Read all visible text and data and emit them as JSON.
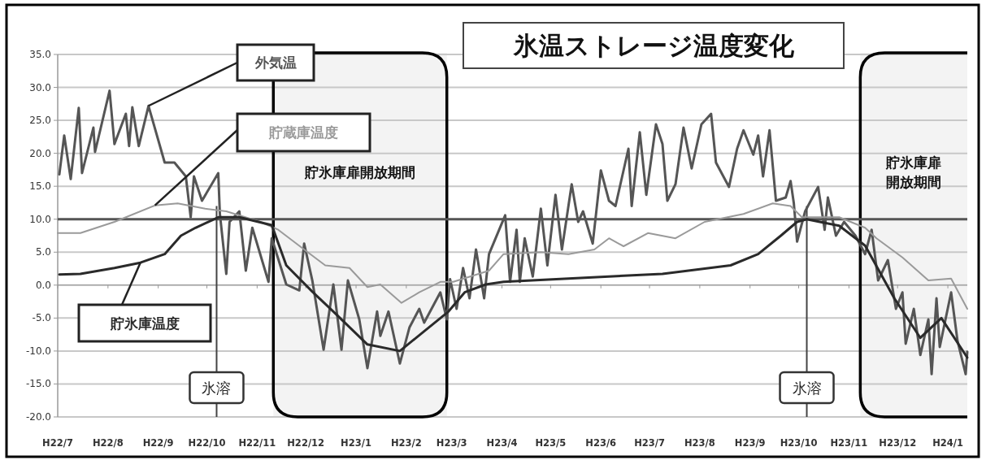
{
  "chart_data": {
    "type": "line",
    "title": "氷温ストレージ温度変化",
    "xlim": [
      "2010-07-01",
      "2012-01-13"
    ],
    "ylim": [
      -20,
      35
    ],
    "xticks": [
      {
        "value": "2010-07-01",
        "label": "H22/7"
      },
      {
        "value": "2010-08-01",
        "label": "H22/8"
      },
      {
        "value": "2010-09-01",
        "label": "H22/9"
      },
      {
        "value": "2010-10-01",
        "label": "H22/10"
      },
      {
        "value": "2010-11-01",
        "label": "H22/11"
      },
      {
        "value": "2010-12-01",
        "label": "H22/12"
      },
      {
        "value": "2011-01-01",
        "label": "H23/1"
      },
      {
        "value": "2011-02-01",
        "label": "H23/2"
      },
      {
        "value": "2011-03-01",
        "label": "H23/3"
      },
      {
        "value": "2011-04-01",
        "label": "H23/4"
      },
      {
        "value": "2011-05-01",
        "label": "H23/5"
      },
      {
        "value": "2011-06-01",
        "label": "H23/6"
      },
      {
        "value": "2011-07-01",
        "label": "H23/7"
      },
      {
        "value": "2011-08-01",
        "label": "H23/8"
      },
      {
        "value": "2011-09-01",
        "label": "H23/9"
      },
      {
        "value": "2011-10-01",
        "label": "H23/10"
      },
      {
        "value": "2011-11-01",
        "label": "H23/11"
      },
      {
        "value": "2011-12-01",
        "label": "H23/12"
      },
      {
        "value": "2012-01-01",
        "label": "H24/1"
      }
    ],
    "yticks": [
      {
        "value": -20,
        "label": "-20.0"
      },
      {
        "value": -15,
        "label": "-15.0"
      },
      {
        "value": -10,
        "label": "-10.0"
      },
      {
        "value": -5,
        "label": "-5.0"
      },
      {
        "value": 0,
        "label": "0.0"
      },
      {
        "value": 5,
        "label": "5.0"
      },
      {
        "value": 10,
        "label": "10.0"
      },
      {
        "value": 15,
        "label": "15.0"
      },
      {
        "value": 20,
        "label": "20.0"
      },
      {
        "value": 25,
        "label": "25.0"
      },
      {
        "value": 30,
        "label": "30.0"
      },
      {
        "value": 35,
        "label": "35.0"
      }
    ],
    "grid": "y",
    "legend": false,
    "marker": "none",
    "line_style": "solid",
    "series": [
      {
        "name": "外気温",
        "color": "#555555",
        "x": [
          "2010-07-02",
          "2010-07-05",
          "2010-07-09",
          "2010-07-14",
          "2010-07-16",
          "2010-07-23",
          "2010-07-24",
          "2010-08-02",
          "2010-08-05",
          "2010-08-12",
          "2010-08-14",
          "2010-08-16",
          "2010-08-20",
          "2010-08-26",
          "2010-09-05",
          "2010-09-11",
          "2010-09-18",
          "2010-09-21",
          "2010-09-23",
          "2010-09-28",
          "2010-10-08",
          "2010-10-09",
          "2010-10-13",
          "2010-10-15",
          "2010-10-21",
          "2010-10-25",
          "2010-10-29",
          "2010-11-08",
          "2010-11-10",
          "2010-11-19",
          "2010-11-27",
          "2010-11-30",
          "2010-12-05",
          "2010-12-12",
          "2010-12-18",
          "2010-12-23",
          "2010-12-27",
          "2011-01-03",
          "2011-01-08",
          "2011-01-14",
          "2011-01-16",
          "2011-01-21",
          "2011-01-28",
          "2011-02-03",
          "2011-02-09",
          "2011-02-12",
          "2011-02-22",
          "2011-02-26",
          "2011-02-28",
          "2011-03-04",
          "2011-03-08",
          "2011-03-12",
          "2011-03-16",
          "2011-03-21",
          "2011-03-24",
          "2011-04-03",
          "2011-04-06",
          "2011-04-10",
          "2011-04-12",
          "2011-04-15",
          "2011-04-20",
          "2011-04-25",
          "2011-04-29",
          "2011-05-04",
          "2011-05-08",
          "2011-05-14",
          "2011-05-18",
          "2011-05-21",
          "2011-05-27",
          "2011-06-01",
          "2011-06-06",
          "2011-06-10",
          "2011-06-18",
          "2011-06-20",
          "2011-06-25",
          "2011-06-29",
          "2011-07-05",
          "2011-07-09",
          "2011-07-12",
          "2011-07-17",
          "2011-07-22",
          "2011-07-27",
          "2011-08-02",
          "2011-08-08",
          "2011-08-11",
          "2011-08-19",
          "2011-08-24",
          "2011-08-28",
          "2011-09-03",
          "2011-09-06",
          "2011-09-09",
          "2011-09-13",
          "2011-09-17",
          "2011-09-23",
          "2011-09-26",
          "2011-09-28",
          "2011-09-30",
          "2011-10-05",
          "2011-10-13",
          "2011-10-17",
          "2011-10-19",
          "2011-10-24",
          "2011-10-29",
          "2011-11-05",
          "2011-11-11",
          "2011-11-15",
          "2011-11-19",
          "2011-11-25",
          "2011-11-30",
          "2011-12-04",
          "2011-12-06",
          "2011-12-11",
          "2011-12-15",
          "2011-12-20",
          "2011-12-22",
          "2011-12-25",
          "2011-12-27",
          "2012-01-03",
          "2012-01-07",
          "2012-01-12",
          "2012-01-13"
        ],
        "values": [
          16.8,
          22.7,
          16.1,
          26.9,
          17.0,
          23.9,
          20.2,
          29.5,
          21.4,
          26.0,
          21.1,
          27.0,
          21.1,
          27.2,
          18.6,
          18.6,
          16.5,
          10.3,
          16.5,
          12.8,
          17.0,
          10.8,
          1.7,
          9.6,
          11.2,
          2.2,
          8.7,
          0.5,
          7.1,
          0.1,
          -0.8,
          6.3,
          0.7,
          -9.8,
          0.1,
          -9.8,
          0.7,
          -5.2,
          -12.6,
          -4.0,
          -7.7,
          -4.0,
          -11.9,
          -6.4,
          -3.6,
          -5.7,
          -1.1,
          -5.2,
          0.9,
          -3.6,
          2.6,
          -2.0,
          5.4,
          -2.0,
          4.7,
          10.6,
          0.5,
          8.4,
          0.5,
          7.1,
          1.3,
          11.6,
          3.0,
          13.7,
          5.4,
          15.3,
          9.6,
          11.2,
          6.3,
          17.4,
          12.8,
          12.0,
          20.7,
          12.0,
          23.2,
          13.7,
          24.4,
          21.4,
          12.8,
          15.3,
          23.9,
          17.7,
          24.4,
          26.0,
          18.6,
          14.9,
          20.7,
          23.5,
          19.8,
          22.7,
          16.5,
          23.5,
          12.8,
          13.3,
          15.8,
          12.4,
          6.6,
          11.2,
          14.9,
          8.4,
          13.3,
          7.5,
          9.6,
          7.5,
          4.7,
          8.4,
          0.7,
          3.8,
          -3.6,
          -1.1,
          -8.9,
          -3.6,
          -10.6,
          -5.2,
          -13.5,
          -2.0,
          -9.4,
          -1.1,
          -8.5,
          -13.5,
          -10.1
        ]
      },
      {
        "name": "貯蔵庫温度",
        "color": "#9a9a9a",
        "x": [
          "2010-07-01",
          "2010-07-15",
          "2010-08-05",
          "2010-08-30",
          "2010-09-13",
          "2010-09-30",
          "2010-10-13",
          "2010-11-03",
          "2010-11-14",
          "2010-11-30",
          "2010-12-13",
          "2010-12-28",
          "2011-01-08",
          "2011-01-16",
          "2011-01-29",
          "2011-02-09",
          "2011-02-22",
          "2011-03-02",
          "2011-03-24",
          "2011-04-02",
          "2011-04-25",
          "2011-05-12",
          "2011-05-28",
          "2011-06-06",
          "2011-06-15",
          "2011-06-30",
          "2011-07-17",
          "2011-08-04",
          "2011-08-28",
          "2011-09-15",
          "2011-09-26",
          "2011-10-03",
          "2011-10-26",
          "2011-11-11",
          "2011-11-18",
          "2011-12-04",
          "2011-12-20",
          "2012-01-03",
          "2012-01-13"
        ],
        "values": [
          7.9,
          7.9,
          9.6,
          12.1,
          12.4,
          11.6,
          11.2,
          9.6,
          8.4,
          5.4,
          3.0,
          2.6,
          -0.3,
          0.1,
          -2.7,
          -1.1,
          0.5,
          0.5,
          2.2,
          4.7,
          5.0,
          4.7,
          5.4,
          7.1,
          5.9,
          7.9,
          7.1,
          9.6,
          10.8,
          12.4,
          12.0,
          10.3,
          10.3,
          8.7,
          7.1,
          4.2,
          0.7,
          1.0,
          -3.6
        ]
      },
      {
        "name": "貯氷庫温度",
        "color": "#2a2a2a",
        "x": [
          "2010-07-02",
          "2010-07-15",
          "2010-08-05",
          "2010-08-21",
          "2010-09-05",
          "2010-09-15",
          "2010-09-24",
          "2010-10-08",
          "2010-10-21",
          "2010-11-10",
          "2010-11-19",
          "2010-12-05",
          "2010-12-18",
          "2011-01-08",
          "2011-01-28",
          "2011-02-12",
          "2011-02-27",
          "2011-03-09",
          "2011-03-22",
          "2011-04-02",
          "2011-05-12",
          "2011-07-09",
          "2011-08-20",
          "2011-09-06",
          "2011-09-20",
          "2011-09-30",
          "2011-10-06",
          "2011-10-26",
          "2011-11-11",
          "2011-11-29",
          "2011-12-15",
          "2011-12-28",
          "2012-01-13"
        ],
        "values": [
          1.6,
          1.7,
          2.6,
          3.4,
          4.7,
          7.5,
          8.7,
          10.3,
          10.3,
          9.1,
          3.0,
          -1.0,
          -4.0,
          -9.0,
          -10.0,
          -7.0,
          -4.0,
          -1.1,
          0.1,
          0.5,
          1.0,
          1.7,
          3.0,
          4.7,
          7.5,
          9.6,
          10.0,
          9.0,
          6.0,
          -2.0,
          -8.0,
          -5.0,
          -11.0
        ]
      }
    ],
    "ref_lines": [
      {
        "axis": "y",
        "value": 10,
        "color": "#555555"
      },
      {
        "axis": "x",
        "value": "2010-10-07",
        "label": "氷溶"
      },
      {
        "axis": "x",
        "value": "2011-10-06",
        "label": "氷溶"
      }
    ],
    "bands": [
      {
        "axis": "x",
        "from": "2010-11-11",
        "to": "2011-02-26",
        "label": "貯氷庫扉開放期間"
      },
      {
        "axis": "x",
        "from": "2011-11-08",
        "to": "2012-01-13",
        "label": "貯氷庫扉開放期間"
      }
    ]
  }
}
